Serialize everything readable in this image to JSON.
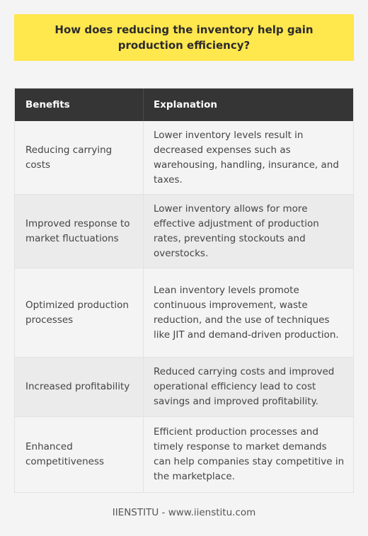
{
  "title": "How does reducing the inventory help gain production efficiency?",
  "table": {
    "headers": {
      "benefits": "Benefits",
      "explanation": "Explanation"
    },
    "rows": [
      {
        "benefit": "Reducing carrying costs",
        "explanation": "Lower inventory levels result in decreased expenses such as warehousing, handling, insurance, and taxes."
      },
      {
        "benefit": "Improved response to market fluctuations",
        "explanation": "Lower inventory allows for more effective adjustment of production rates, preventing stockouts and overstocks."
      },
      {
        "benefit": "Optimized production processes",
        "explanation": "Lean inventory levels promote continuous improvement, waste reduction, and the use of techniques like JIT and demand-driven production."
      },
      {
        "benefit": "Increased profitability",
        "explanation": "Reduced carrying costs and improved operational efficiency lead to cost savings and improved profitability."
      },
      {
        "benefit": "Enhanced competitiveness",
        "explanation": "Efficient production processes and timely response to market demands can help companies stay competitive in the marketplace."
      }
    ]
  },
  "footer": "IIENSTITU - www.iienstitu.com"
}
